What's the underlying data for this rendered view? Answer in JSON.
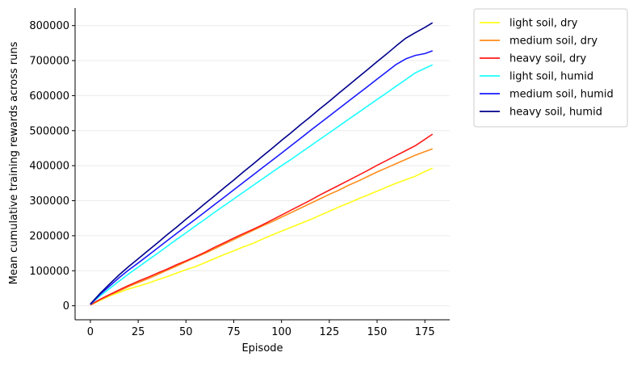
{
  "chart_data": {
    "type": "line",
    "xlabel": "Episode",
    "ylabel": "Mean cumulative training rewards across runs",
    "xlim": [
      -8,
      188
    ],
    "ylim": [
      -40000,
      850000
    ],
    "xticks": [
      0,
      25,
      50,
      75,
      100,
      125,
      150,
      175
    ],
    "yticks": [
      0,
      100000,
      200000,
      300000,
      400000,
      500000,
      600000,
      700000,
      800000
    ],
    "grid": "horizontal",
    "legend_position": "outside-right",
    "x": [
      0,
      5,
      10,
      15,
      20,
      25,
      30,
      35,
      40,
      45,
      50,
      55,
      60,
      65,
      70,
      75,
      80,
      85,
      90,
      95,
      100,
      105,
      110,
      115,
      120,
      125,
      130,
      135,
      140,
      145,
      150,
      155,
      160,
      165,
      170,
      175,
      179
    ],
    "series": [
      {
        "name": "light soil, dry",
        "color": "#ffff1a",
        "values": [
          2000,
          15000,
          28000,
          38000,
          48000,
          56000,
          64000,
          74000,
          83000,
          93000,
          103000,
          112000,
          123000,
          135000,
          146000,
          157000,
          168000,
          178000,
          190000,
          202000,
          213000,
          224000,
          235000,
          246000,
          258000,
          270000,
          282000,
          293000,
          305000,
          316000,
          327000,
          339000,
          350000,
          360000,
          370000,
          383000,
          393000
        ]
      },
      {
        "name": "medium soil, dry",
        "color": "#ff8c1a",
        "values": [
          2000,
          17000,
          30000,
          42000,
          55000,
          66000,
          77000,
          89000,
          101000,
          113000,
          126000,
          138000,
          150000,
          163000,
          176000,
          189000,
          202000,
          215000,
          228000,
          240000,
          253000,
          266000,
          279000,
          292000,
          305000,
          318000,
          330000,
          344000,
          356000,
          369000,
          382000,
          394000,
          406000,
          418000,
          430000,
          440000,
          448000
        ]
      },
      {
        "name": "heavy soil, dry",
        "color": "#ff1a1a",
        "values": [
          3000,
          18000,
          32000,
          45000,
          58000,
          70000,
          81000,
          93000,
          104000,
          117000,
          128000,
          140000,
          153000,
          167000,
          180000,
          193000,
          206000,
          218000,
          231000,
          245000,
          259000,
          273000,
          287000,
          301000,
          316000,
          330000,
          344000,
          358000,
          372000,
          386000,
          401000,
          415000,
          429000,
          443000,
          457000,
          475000,
          490000
        ]
      },
      {
        "name": "light soil, humid",
        "color": "#1affff",
        "values": [
          4000,
          28000,
          49000,
          70000,
          91000,
          110000,
          130000,
          149000,
          169000,
          189000,
          208000,
          228000,
          247000,
          267000,
          286000,
          305000,
          324000,
          343000,
          362000,
          381000,
          400000,
          418000,
          437000,
          456000,
          475000,
          494000,
          513000,
          532000,
          551000,
          570000,
          589000,
          608000,
          627000,
          646000,
          665000,
          678000,
          688000
        ]
      },
      {
        "name": "medium soil, humid",
        "color": "#1a1aff",
        "values": [
          4000,
          32000,
          56000,
          80000,
          102000,
          122000,
          143000,
          164000,
          185000,
          206000,
          227000,
          247000,
          268000,
          289000,
          310000,
          331000,
          352000,
          373000,
          394000,
          415000,
          436000,
          457000,
          478000,
          500000,
          521000,
          542000,
          563000,
          584000,
          605000,
          626000,
          647000,
          668000,
          689000,
          705000,
          715000,
          720000,
          728000
        ]
      },
      {
        "name": "heavy soil, humid",
        "color": "#00008b",
        "values": [
          5000,
          35000,
          62000,
          88000,
          112000,
          134000,
          157000,
          179000,
          202000,
          224000,
          247000,
          269000,
          292000,
          314000,
          337000,
          359000,
          382000,
          404000,
          427000,
          449000,
          472000,
          494000,
          517000,
          539000,
          562000,
          584000,
          607000,
          629000,
          652000,
          674000,
          697000,
          719000,
          742000,
          764000,
          780000,
          795000,
          808000
        ]
      }
    ]
  }
}
